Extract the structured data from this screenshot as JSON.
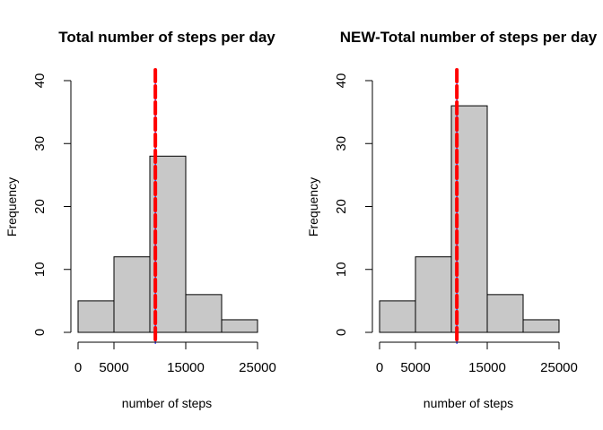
{
  "chart_data": [
    {
      "type": "bar",
      "title": "Total number of steps per day",
      "xlabel": "number of steps",
      "ylabel": "Frequency",
      "bin_edges": [
        0,
        5000,
        10000,
        15000,
        20000,
        25000
      ],
      "values": [
        5,
        12,
        28,
        6,
        2
      ],
      "xlim": [
        0,
        25000
      ],
      "ylim": [
        0,
        40
      ],
      "x_ticks": [
        0,
        5000,
        15000,
        25000
      ],
      "x_tick_labels": [
        "0",
        "5000",
        "15000",
        "25000"
      ],
      "y_ticks": [
        0,
        10,
        20,
        30,
        40
      ],
      "y_tick_labels": [
        "0",
        "10",
        "20",
        "30",
        "40"
      ],
      "reference_lines": [
        {
          "x": 10766,
          "color": "#0000ff",
          "style": "solid"
        },
        {
          "x": 10765,
          "color": "#ff0000",
          "style": "dashed"
        }
      ],
      "bar_fill": "#c8c8c8",
      "bar_stroke": "#000000",
      "grid": false
    },
    {
      "type": "bar",
      "title": "NEW-Total number of steps per day",
      "xlabel": "number of steps",
      "ylabel": "Frequency",
      "bin_edges": [
        0,
        5000,
        10000,
        15000,
        20000,
        25000
      ],
      "values": [
        5,
        12,
        36,
        6,
        2
      ],
      "xlim": [
        0,
        25000
      ],
      "ylim": [
        0,
        40
      ],
      "x_ticks": [
        0,
        5000,
        15000,
        25000
      ],
      "x_tick_labels": [
        "0",
        "5000",
        "15000",
        "25000"
      ],
      "y_ticks": [
        0,
        10,
        20,
        30,
        40
      ],
      "y_tick_labels": [
        "0",
        "10",
        "20",
        "30",
        "40"
      ],
      "reference_lines": [
        {
          "x": 10766,
          "color": "#0000ff",
          "style": "solid"
        },
        {
          "x": 10766,
          "color": "#ff0000",
          "style": "dashed"
        }
      ],
      "bar_fill": "#c8c8c8",
      "bar_stroke": "#000000",
      "grid": false
    }
  ]
}
